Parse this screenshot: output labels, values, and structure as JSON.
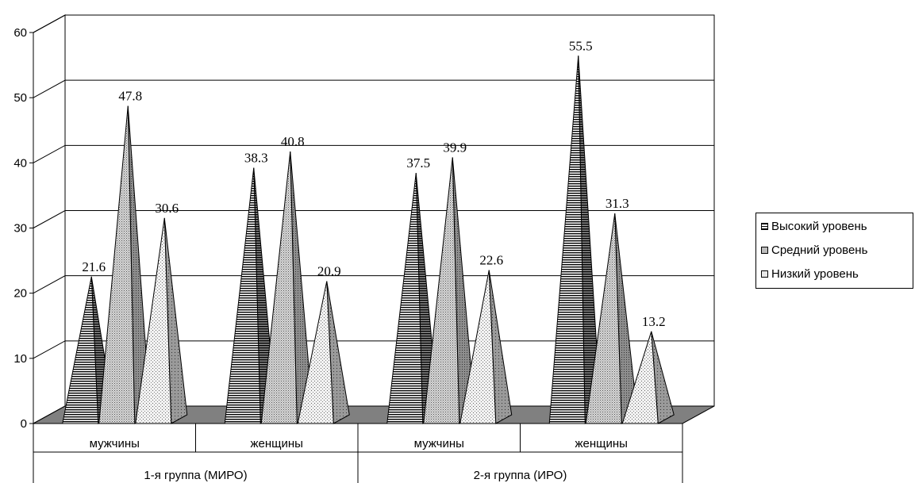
{
  "chart_data": {
    "type": "bar",
    "style": "3d-pyramid",
    "groups": [
      "1-я группа (МИРО)",
      "2-я группа (ИРО)"
    ],
    "categories": [
      "мужчины",
      "женщины",
      "мужчины",
      "женщины"
    ],
    "category_group": [
      0,
      0,
      1,
      1
    ],
    "series": [
      {
        "name": "Высокий уровень",
        "values": [
          21.6,
          38.3,
          37.5,
          55.5
        ],
        "pattern": "horizontal-lines",
        "color": "#555555"
      },
      {
        "name": "Средний уровень",
        "values": [
          47.8,
          40.8,
          39.9,
          31.3
        ],
        "pattern": "dense-dots",
        "color": "#c8c8c8"
      },
      {
        "name": "Низкий уровень",
        "values": [
          30.6,
          20.9,
          22.6,
          13.2
        ],
        "pattern": "sparse-dots",
        "color": "#e6e6e6"
      }
    ],
    "data_labels": [
      "21.6",
      "38.3",
      "37.5",
      "55.5",
      "47.8",
      "40.8",
      "39.9",
      "31.3",
      "30.6",
      "20.9",
      "22.6",
      "13.2"
    ],
    "y_ticks": [
      "0",
      "10",
      "20",
      "30",
      "40",
      "50",
      "60"
    ],
    "ylim": [
      0,
      60
    ],
    "grid": true,
    "legend_position": "right",
    "floor_color": "#808080"
  }
}
